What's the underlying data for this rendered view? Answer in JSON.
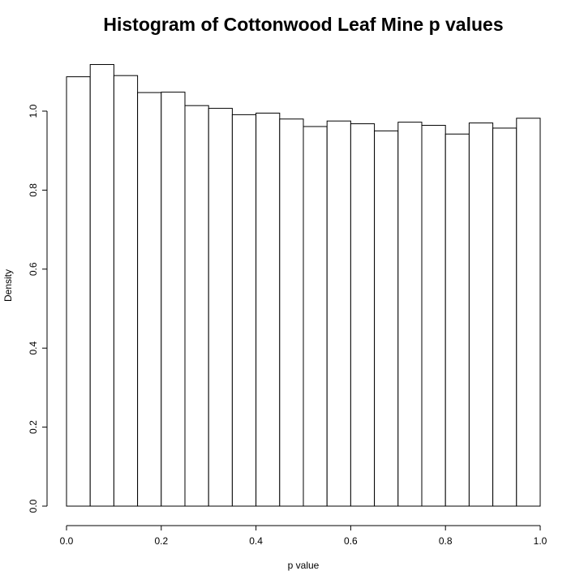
{
  "chart_data": {
    "type": "bar",
    "title": "Histogram of Cottonwood Leaf Mine p values",
    "xlabel": "p value",
    "ylabel": "Density",
    "xlim": [
      0,
      1
    ],
    "ylim": [
      0,
      1.2
    ],
    "grid": false,
    "bar_fill": "#ffffff",
    "bar_stroke": "#000000",
    "bin_edges": [
      0.0,
      0.05,
      0.1,
      0.15,
      0.2,
      0.25,
      0.3,
      0.35,
      0.4,
      0.45,
      0.5,
      0.55,
      0.6,
      0.65,
      0.7,
      0.75,
      0.8,
      0.85,
      0.9,
      0.95,
      1.0
    ],
    "values": [
      1.087,
      1.118,
      1.09,
      1.047,
      1.048,
      1.014,
      1.007,
      0.991,
      0.995,
      0.98,
      0.961,
      0.975,
      0.968,
      0.95,
      0.972,
      0.964,
      0.942,
      0.97,
      0.957,
      0.982
    ],
    "x_ticks": [
      "0.0",
      "0.2",
      "0.4",
      "0.6",
      "0.8",
      "1.0"
    ],
    "x_tick_values": [
      0,
      0.2,
      0.4,
      0.6,
      0.8,
      1.0
    ],
    "y_ticks": [
      "0.0",
      "0.2",
      "0.4",
      "0.6",
      "0.8",
      "1.0"
    ],
    "y_tick_values": [
      0,
      0.2,
      0.4,
      0.6,
      0.8,
      1.0
    ]
  }
}
